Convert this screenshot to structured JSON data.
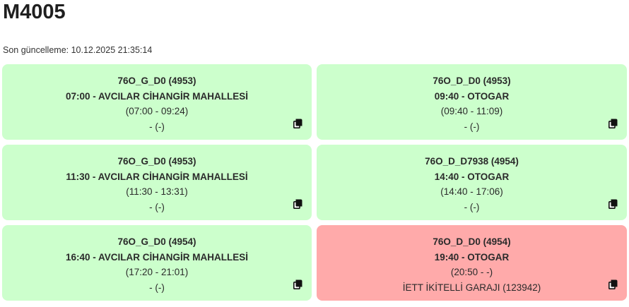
{
  "page": {
    "title": "M4005",
    "last_update": "Son güncelleme: 10.12.2025 21:35:14"
  },
  "cards": [
    {
      "route": "76O_G_D0 (4953)",
      "departure": "07:00 - AVCILAR CİHANGİR MAHALLESİ",
      "times": "(07:00 - 09:24)",
      "location": "- (-)",
      "status": "ok"
    },
    {
      "route": "76O_D_D0 (4953)",
      "departure": "09:40 - OTOGAR",
      "times": "(09:40 - 11:09)",
      "location": "- (-)",
      "status": "ok"
    },
    {
      "route": "76O_G_D0 (4953)",
      "departure": "11:30 - AVCILAR CİHANGİR MAHALLESİ",
      "times": "(11:30 - 13:31)",
      "location": "- (-)",
      "status": "ok"
    },
    {
      "route": "76O_D_D7938 (4954)",
      "departure": "14:40 - OTOGAR",
      "times": "(14:40 - 17:06)",
      "location": "- (-)",
      "status": "ok"
    },
    {
      "route": "76O_G_D0 (4954)",
      "departure": "16:40 - AVCILAR CİHANGİR MAHALLESİ",
      "times": "(17:20 - 21:01)",
      "location": "- (-)",
      "status": "ok"
    },
    {
      "route": "76O_D_D0 (4954)",
      "departure": "19:40 - OTOGAR",
      "times": "(20:50 - -)",
      "location": "İETT İKİTELLİ GARAJI (123942)",
      "status": "alert"
    }
  ],
  "colors": {
    "card_ok": "#ccffcc",
    "card_alert": "#ffaaaa",
    "icon": "#111111"
  },
  "icons": {
    "copy": "copy-icon"
  }
}
